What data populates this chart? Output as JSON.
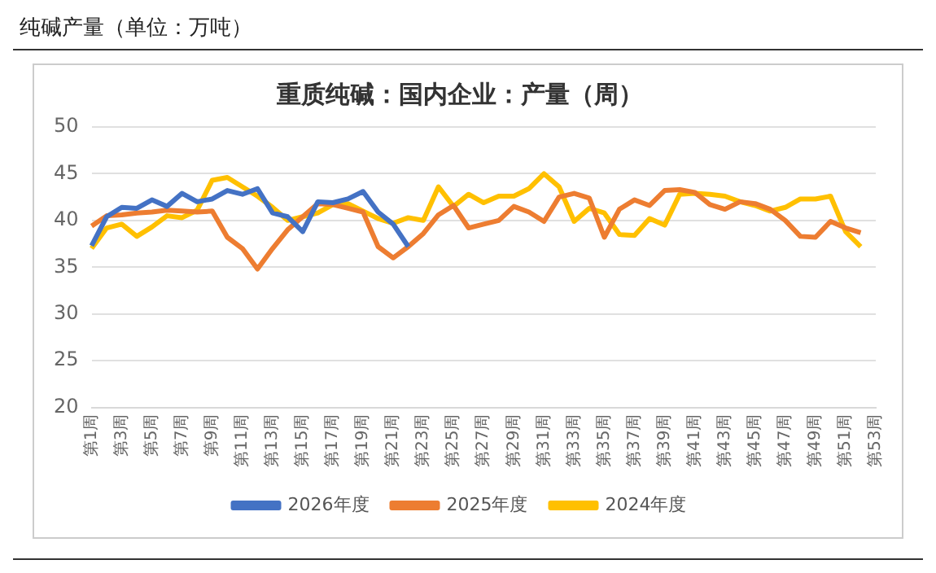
{
  "chart_data": {
    "type": "line",
    "title": "重质纯碱：国内企业：产量（周）",
    "subtitle": "纯碱产量（单位：万吨）",
    "categories": [
      "第1周",
      null,
      "第3周",
      null,
      "第5周",
      null,
      "第7周",
      null,
      "第9周",
      null,
      "第11周",
      null,
      "第13周",
      null,
      "第15周",
      null,
      "第17周",
      null,
      "第19周",
      null,
      "第21周",
      null,
      "第23周",
      null,
      "第25周",
      null,
      "第27周",
      null,
      "第29周",
      null,
      "第31周",
      null,
      "第33周",
      null,
      "第35周",
      null,
      "第37周",
      null,
      "第39周",
      null,
      "第41周",
      null,
      "第43周",
      null,
      "第45周",
      null,
      "第47周",
      null,
      "第49周",
      null,
      "第51周",
      null,
      "第53周"
    ],
    "series": [
      {
        "name": "2026年度",
        "color": "#4472c4",
        "values": [
          37.3,
          40.4,
          41.4,
          41.3,
          42.2,
          41.5,
          42.9,
          42.0,
          42.3,
          43.2,
          42.8,
          43.4,
          40.8,
          40.4,
          38.8,
          42.0,
          41.9,
          42.3,
          43.1,
          40.9,
          39.6,
          37.2,
          null,
          null,
          null,
          null,
          null,
          null,
          null,
          null,
          null,
          null,
          null,
          null,
          null,
          null,
          null,
          null,
          null,
          null,
          null,
          null,
          null,
          null,
          null,
          null,
          null,
          null,
          null,
          null,
          null,
          null,
          null
        ]
      },
      {
        "name": "2025年度",
        "color": "#ed7d31",
        "values": [
          39.4,
          40.5,
          40.6,
          40.8,
          40.9,
          41.1,
          41.0,
          40.9,
          41.0,
          38.2,
          37.0,
          34.8,
          37.0,
          39.0,
          40.4,
          41.8,
          41.7,
          41.3,
          40.9,
          37.2,
          36.0,
          37.2,
          38.6,
          40.6,
          41.6,
          39.2,
          39.6,
          40.0,
          41.5,
          40.9,
          39.9,
          42.5,
          42.9,
          42.4,
          38.2,
          41.2,
          42.2,
          41.6,
          43.2,
          43.3,
          43.0,
          41.7,
          41.2,
          42.0,
          41.8,
          41.2,
          40.0,
          38.3,
          38.2,
          39.9,
          39.2,
          38.7,
          null
        ]
      },
      {
        "name": "2024年度",
        "color": "#ffc000",
        "values": [
          37.0,
          39.2,
          39.6,
          38.3,
          39.3,
          40.5,
          40.3,
          41.1,
          44.3,
          44.6,
          43.6,
          42.6,
          41.4,
          40.0,
          40.4,
          40.8,
          41.7,
          41.8,
          41.0,
          40.2,
          39.7,
          40.3,
          40.0,
          43.6,
          41.5,
          42.8,
          41.9,
          42.6,
          42.6,
          43.4,
          45.0,
          43.6,
          39.9,
          41.3,
          40.8,
          38.5,
          38.4,
          40.2,
          39.5,
          42.8,
          42.9,
          42.8,
          42.6,
          42.0,
          41.6,
          41.0,
          41.4,
          42.3,
          42.3,
          42.6,
          38.8,
          37.2,
          null
        ]
      }
    ],
    "ylim": [
      20,
      50
    ],
    "yticks": [
      20,
      25,
      30,
      35,
      40,
      45,
      50
    ],
    "grid": "y",
    "legend": "bottom",
    "marker": "none",
    "line_style": "solid"
  }
}
